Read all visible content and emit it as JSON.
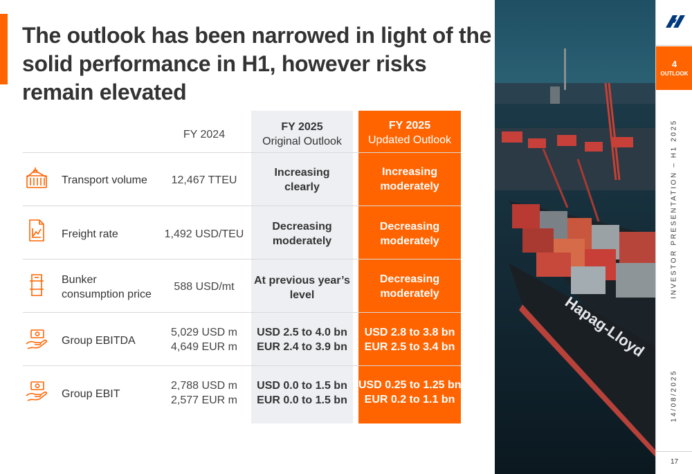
{
  "title": "The outlook has been narrowed in light of the solid performance in H1, however risks remain elevated",
  "columns": {
    "fy2024": {
      "label": "FY 2024"
    },
    "original": {
      "year": "FY 2025",
      "subtitle": "Original Outlook"
    },
    "updated": {
      "year": "FY 2025",
      "subtitle": "Updated Outlook"
    }
  },
  "rows": [
    {
      "icon": "container-crane-icon",
      "label": [
        "Transport volume"
      ],
      "fy2024": [
        "12,467 TTEU"
      ],
      "original": [
        "Increasing",
        "clearly"
      ],
      "updated": [
        "Increasing",
        "moderately"
      ]
    },
    {
      "icon": "document-chart-icon",
      "label": [
        "Freight rate"
      ],
      "fy2024": [
        "1,492 USD/TEU"
      ],
      "original": [
        "Decreasing",
        "moderately"
      ],
      "updated": [
        "Decreasing",
        "moderately"
      ]
    },
    {
      "icon": "fuel-barrel-icon",
      "label": [
        "Bunker",
        "consumption price"
      ],
      "fy2024": [
        "588 USD/mt"
      ],
      "original": [
        "At previous year’s",
        "level"
      ],
      "updated": [
        "Decreasing",
        "moderately"
      ]
    },
    {
      "icon": "money-hand-icon",
      "label": [
        "Group EBITDA"
      ],
      "fy2024": [
        "5,029 USD m",
        "4,649 EUR m"
      ],
      "original": [
        "USD 2.5 to 4.0 bn",
        "EUR 2.4 to 3.9 bn"
      ],
      "updated": [
        "USD 2.8 to 3.8 bn",
        "EUR 2.5 to 3.4 bn"
      ]
    },
    {
      "icon": "money-hand-icon",
      "label": [
        "Group EBIT"
      ],
      "fy2024": [
        "2,788 USD m",
        "2,577 EUR m"
      ],
      "original": [
        "USD 0.0 to 1.5 bn",
        "EUR 0.0 to 1.5 bn"
      ],
      "updated": [
        "USD 0.25 to 1.25 bn",
        "EUR 0.2 to 1.1 bn"
      ]
    }
  ],
  "sidebar": {
    "chapter_number": "4",
    "chapter_label": "OUTLOOK",
    "presentation_label": "INVESTOR PRESENTATION – H1 2025",
    "date": "14/08/2025",
    "page_number": "17",
    "logo_icon": "hapag-lloyd-logo-icon"
  },
  "photo": {
    "hull_text": "Hapag-Lloyd"
  },
  "colors": {
    "accent": "#ff6400",
    "text": "#333333",
    "original_bg": "#eeeff3"
  }
}
